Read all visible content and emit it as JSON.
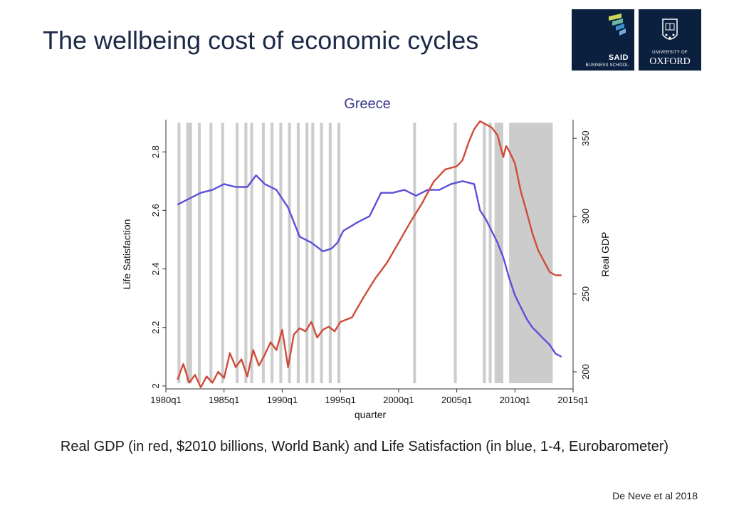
{
  "slide": {
    "title": "The wellbeing cost of economic cycles",
    "caption": "Real GDP (in red, $2010 billions, World Bank) and Life Satisfaction (in blue, 1-4, Eurobarometer)",
    "citation": "De Neve et al 2018"
  },
  "logos": {
    "said_main": "SAID",
    "said_sub": "BUSINESS SCHOOL",
    "oxford_top": "UNIVERSITY OF",
    "oxford_main": "OXFORD",
    "said_stripe_colors": [
      "#c9d65a",
      "#6fb3a6",
      "#3b8fd0",
      "#7aa7d8"
    ]
  },
  "chart_data": {
    "type": "line",
    "title": "Greece",
    "xlabel": "quarter",
    "ylabel_left": "Life Satisfaction",
    "ylabel_right": "Real GDP",
    "x_ticks": [
      "1980q1",
      "1985q1",
      "1990q1",
      "1995q1",
      "2000q1",
      "2005q1",
      "2010q1",
      "2015q1"
    ],
    "y_ticks_left": [
      "2",
      "2.2",
      "2.4",
      "2.6",
      "2.8"
    ],
    "y_ticks_right": [
      "200",
      "250",
      "300",
      "350"
    ],
    "x_range": [
      1980.0,
      2015.0
    ],
    "ylim_left": [
      1.99,
      2.91
    ],
    "ylim_right": [
      189,
      362
    ],
    "grid": false,
    "recession_bands": [
      [
        1981.0,
        1981.25
      ],
      [
        1981.75,
        1982.25
      ],
      [
        1982.75,
        1983.0
      ],
      [
        1983.75,
        1984.0
      ],
      [
        1984.75,
        1985.0
      ],
      [
        1986.0,
        1986.25
      ],
      [
        1986.75,
        1987.0
      ],
      [
        1987.25,
        1987.5
      ],
      [
        1988.25,
        1988.5
      ],
      [
        1989.0,
        1989.25
      ],
      [
        1989.75,
        1990.0
      ],
      [
        1990.5,
        1990.75
      ],
      [
        1991.25,
        1991.5
      ],
      [
        1992.0,
        1992.25
      ],
      [
        1992.5,
        1992.75
      ],
      [
        1993.25,
        1993.5
      ],
      [
        1994.0,
        1994.25
      ],
      [
        1994.75,
        1995.0
      ],
      [
        2001.25,
        2001.5
      ],
      [
        2004.75,
        2005.0
      ],
      [
        2007.25,
        2007.5
      ],
      [
        2007.75,
        2008.0
      ],
      [
        2008.25,
        2009.0
      ],
      [
        2009.5,
        2013.25
      ]
    ],
    "series": [
      {
        "axis": "left",
        "color": "#5b50d9",
        "x": [
          1981.0,
          1982.0,
          1983.0,
          1984.0,
          1985.0,
          1986.0,
          1987.0,
          1987.75,
          1988.5,
          1989.5,
          1990.5,
          1991.5,
          1992.5,
          1993.5,
          1994.25,
          1994.75,
          1995.25,
          1996.5,
          1997.5,
          1998.5,
          1999.5,
          2000.5,
          2001.5,
          2002.5,
          2003.5,
          2004.5,
          2005.5,
          2006.5,
          2007.0,
          2007.5,
          2008.0,
          2008.5,
          2009.0,
          2009.5,
          2010.0,
          2010.5,
          2011.0,
          2011.5,
          2012.0,
          2012.5,
          2013.0,
          2013.5,
          2014.0
        ],
        "values": [
          2.62,
          2.64,
          2.66,
          2.67,
          2.69,
          2.68,
          2.68,
          2.72,
          2.69,
          2.67,
          2.61,
          2.51,
          2.49,
          2.46,
          2.47,
          2.49,
          2.53,
          2.56,
          2.58,
          2.66,
          2.66,
          2.67,
          2.65,
          2.67,
          2.67,
          2.69,
          2.7,
          2.69,
          2.6,
          2.57,
          2.53,
          2.49,
          2.44,
          2.37,
          2.31,
          2.27,
          2.23,
          2.2,
          2.18,
          2.16,
          2.14,
          2.11,
          2.1
        ]
      },
      {
        "axis": "right",
        "color": "#cf4b39",
        "x": [
          1981.0,
          1981.5,
          1982.0,
          1982.5,
          1983.0,
          1983.5,
          1984.0,
          1984.5,
          1985.0,
          1985.5,
          1986.0,
          1986.5,
          1987.0,
          1987.5,
          1988.0,
          1988.5,
          1989.0,
          1989.5,
          1990.0,
          1990.5,
          1991.0,
          1991.5,
          1992.0,
          1992.5,
          1993.0,
          1993.5,
          1994.0,
          1994.5,
          1995.0,
          1996.0,
          1997.0,
          1998.0,
          1999.0,
          2000.0,
          2001.0,
          2002.0,
          2003.0,
          2004.0,
          2005.0,
          2005.5,
          2006.0,
          2006.5,
          2007.0,
          2007.5,
          2008.0,
          2008.5,
          2009.0,
          2009.25,
          2009.5,
          2010.0,
          2010.5,
          2011.0,
          2011.5,
          2012.0,
          2012.5,
          2013.0,
          2013.5,
          2014.0
        ],
        "values": [
          195,
          205,
          193,
          198,
          190,
          197,
          193,
          200,
          196,
          212,
          203,
          208,
          197,
          214,
          204,
          211,
          219,
          214,
          227,
          203,
          224,
          228,
          226,
          232,
          222,
          227,
          229,
          226,
          232,
          235,
          248,
          260,
          270,
          283,
          296,
          308,
          322,
          330,
          332,
          336,
          347,
          356,
          361,
          359,
          357,
          352,
          338,
          345,
          342,
          334,
          316,
          303,
          289,
          278,
          271,
          264,
          262,
          262
        ]
      }
    ]
  }
}
